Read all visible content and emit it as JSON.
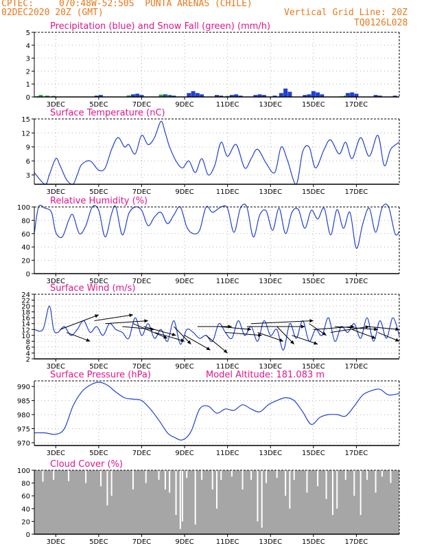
{
  "header": {
    "source": "CPTEC:",
    "location": "070:48W-52:50S  PUNTA ARENAS (CHILE)",
    "run": "02DEC2020 20Z (GMT)",
    "grid": "Vertical Grid Line: 20Z",
    "code": "TQ0126L028"
  },
  "colors": {
    "header": "#e8781a",
    "title": "#e0148c",
    "blue": "#2040d0",
    "green": "#2aaa2a",
    "cloud": "#a6a6a6",
    "grid": "#b0b0b0"
  },
  "chart_data": [
    {
      "type": "bar",
      "title": "Precipitation (blue) and Snow Fall (green) (mm/h)",
      "ylim": [
        0,
        5
      ],
      "yticks": [
        0,
        1,
        2,
        3,
        4,
        5
      ],
      "xticks": [
        "3DEC",
        "5DEC",
        "7DEC",
        "9DEC",
        "11DEC",
        "13DEC",
        "15DEC",
        "17DEC"
      ],
      "series": [
        {
          "name": "Precipitation",
          "points": [
            [
              0.2,
              0.05
            ],
            [
              2.9,
              0.1
            ],
            [
              3.1,
              0.15
            ],
            [
              4.6,
              0.2
            ],
            [
              4.8,
              0.25
            ],
            [
              5.0,
              0.15
            ],
            [
              6.1,
              0.2
            ],
            [
              6.3,
              0.15
            ],
            [
              6.5,
              0.1
            ],
            [
              7.2,
              0.3
            ],
            [
              7.4,
              0.45
            ],
            [
              7.6,
              0.3
            ],
            [
              7.8,
              0.2
            ],
            [
              8.5,
              0.15
            ],
            [
              8.7,
              0.1
            ],
            [
              9.2,
              0.15
            ],
            [
              9.4,
              0.2
            ],
            [
              9.6,
              0.1
            ],
            [
              10.3,
              0.15
            ],
            [
              10.5,
              0.2
            ],
            [
              10.7,
              0.15
            ],
            [
              11.2,
              0.1
            ],
            [
              11.5,
              0.3
            ],
            [
              11.7,
              0.65
            ],
            [
              11.9,
              0.4
            ],
            [
              12.6,
              0.15
            ],
            [
              12.8,
              0.2
            ],
            [
              13.0,
              0.45
            ],
            [
              13.2,
              0.35
            ],
            [
              13.4,
              0.2
            ],
            [
              14.6,
              0.3
            ],
            [
              14.8,
              0.35
            ],
            [
              15.0,
              0.25
            ],
            [
              15.9,
              0.15
            ],
            [
              16.1,
              0.1
            ],
            [
              16.8,
              0.1
            ]
          ]
        },
        {
          "name": "Snow Fall",
          "points": [
            [
              0.3,
              0.15
            ],
            [
              0.6,
              0.1
            ],
            [
              0.9,
              0.08
            ],
            [
              4.4,
              0.12
            ],
            [
              5.9,
              0.18
            ],
            [
              6.2,
              0.12
            ],
            [
              9.0,
              0.08
            ],
            [
              14.3,
              0.05
            ],
            [
              14.5,
              0.1
            ]
          ]
        }
      ]
    },
    {
      "type": "line",
      "title": "Surface Temperature (nC)",
      "ylim": [
        1,
        15
      ],
      "yticks": [
        3,
        6,
        9,
        12,
        15
      ],
      "xticks": [
        "3DEC",
        "5DEC",
        "7DEC",
        "9DEC",
        "11DEC",
        "13DEC",
        "15DEC",
        "17DEC"
      ],
      "x": [
        0.0,
        0.5,
        0.7,
        1.0,
        1.2,
        1.5,
        1.8,
        2.0,
        2.2,
        2.6,
        3.0,
        3.3,
        3.6,
        3.9,
        4.2,
        4.4,
        4.7,
        5.0,
        5.3,
        5.6,
        5.9,
        6.1,
        6.3,
        6.6,
        6.9,
        7.2,
        7.5,
        7.8,
        8.1,
        8.4,
        8.7,
        9.0,
        9.4,
        9.8,
        10.1,
        10.4,
        10.8,
        11.2,
        11.5,
        11.8,
        12.2,
        12.5,
        12.8,
        13.1,
        13.5,
        13.8,
        14.2,
        14.5,
        14.8,
        15.2,
        15.6,
        16.0,
        16.3,
        16.6,
        17.0
      ],
      "y": [
        3.5,
        1.0,
        3.0,
        6.5,
        5.0,
        2.0,
        1.0,
        3.0,
        5.2,
        6.0,
        4.0,
        4.5,
        8.5,
        11.0,
        9.0,
        9.5,
        7.5,
        11.5,
        9.5,
        11.0,
        14.5,
        12.0,
        9.0,
        6.0,
        4.5,
        6.0,
        3.5,
        6.5,
        3.0,
        5.0,
        10.0,
        7.0,
        9.5,
        4.5,
        6.5,
        8.5,
        5.5,
        3.5,
        9.0,
        6.0,
        1.0,
        8.0,
        9.0,
        4.5,
        8.5,
        10.5,
        7.5,
        10.0,
        6.5,
        11.0,
        7.0,
        11.5,
        5.0,
        8.5,
        10.0
      ]
    },
    {
      "type": "line",
      "title": "Relative Humidity (%)",
      "ylim": [
        0,
        100
      ],
      "yticks": [
        0,
        20,
        40,
        60,
        80,
        100
      ],
      "xticks": [
        "3DEC",
        "5DEC",
        "7DEC",
        "9DEC",
        "11DEC",
        "13DEC",
        "15DEC",
        "17DEC"
      ],
      "x": [
        0.0,
        0.2,
        0.5,
        0.8,
        1.0,
        1.3,
        1.6,
        1.8,
        2.1,
        2.4,
        2.7,
        3.0,
        3.3,
        3.6,
        3.8,
        4.1,
        4.4,
        4.7,
        5.0,
        5.3,
        5.6,
        5.9,
        6.2,
        6.5,
        6.8,
        7.1,
        7.4,
        7.7,
        8.0,
        8.3,
        8.7,
        9.0,
        9.3,
        9.6,
        9.9,
        10.2,
        10.5,
        10.8,
        11.1,
        11.4,
        11.7,
        12.0,
        12.3,
        12.6,
        12.9,
        13.2,
        13.5,
        13.8,
        14.1,
        14.4,
        14.7,
        15.0,
        15.3,
        15.6,
        15.9,
        16.2,
        16.5,
        16.8,
        17.0
      ],
      "y": [
        60,
        100,
        98,
        92,
        62,
        55,
        80,
        88,
        60,
        72,
        100,
        95,
        55,
        90,
        100,
        58,
        90,
        100,
        95,
        72,
        85,
        92,
        75,
        88,
        100,
        70,
        60,
        65,
        100,
        92,
        100,
        98,
        62,
        98,
        100,
        55,
        88,
        94,
        65,
        98,
        60,
        92,
        96,
        68,
        95,
        82,
        98,
        58,
        96,
        68,
        92,
        38,
        75,
        98,
        62,
        99,
        100,
        60,
        63
      ]
    },
    {
      "type": "line",
      "title": "Surface Wind (m/s)",
      "ylim": [
        2,
        24
      ],
      "yticks": [
        2,
        4,
        6,
        8,
        10,
        12,
        14,
        16,
        18,
        20,
        22,
        24
      ],
      "xticks": [
        "3DEC",
        "5DEC",
        "7DEC",
        "9DEC",
        "11DEC",
        "13DEC",
        "15DEC",
        "17DEC"
      ],
      "x": [
        0.0,
        0.4,
        0.7,
        0.9,
        1.1,
        1.4,
        1.7,
        2.0,
        2.3,
        2.6,
        2.9,
        3.2,
        3.5,
        3.8,
        4.1,
        4.4,
        4.7,
        5.0,
        5.3,
        5.6,
        5.9,
        6.2,
        6.5,
        6.8,
        7.1,
        7.4,
        7.7,
        8.0,
        8.3,
        8.6,
        8.9,
        9.2,
        9.5,
        9.8,
        10.1,
        10.4,
        10.7,
        11.0,
        11.3,
        11.6,
        11.9,
        12.2,
        12.5,
        12.8,
        13.1,
        13.4,
        13.7,
        14.0,
        14.3,
        14.6,
        14.9,
        15.2,
        15.5,
        15.8,
        16.1,
        16.4,
        16.7,
        17.0
      ],
      "y": [
        12,
        12,
        20,
        12,
        11,
        13,
        10,
        12,
        15,
        11,
        13,
        10,
        14,
        12,
        11,
        9,
        16,
        10,
        14,
        9,
        12,
        8,
        15,
        7,
        12,
        11,
        9,
        10,
        8,
        14,
        11,
        9,
        15,
        10,
        13,
        8,
        15,
        10,
        12,
        5,
        14,
        9,
        15,
        8,
        12,
        10,
        16,
        8,
        13,
        11,
        14,
        9,
        16,
        8,
        15,
        9,
        16,
        10
      ]
    },
    {
      "type": "line",
      "title": "Surface Pressure (hPa)",
      "annotation": "Model Altitude: 181.083 m",
      "ylim": [
        969,
        992
      ],
      "yticks": [
        970,
        975,
        980,
        985,
        990
      ],
      "xticks": [
        "3DEC",
        "5DEC",
        "7DEC",
        "9DEC",
        "11DEC",
        "13DEC",
        "15DEC",
        "17DEC"
      ],
      "x": [
        0.0,
        0.5,
        1.0,
        1.4,
        1.8,
        2.2,
        2.6,
        3.0,
        3.4,
        3.8,
        4.2,
        4.6,
        5.0,
        5.4,
        5.8,
        6.2,
        6.5,
        6.9,
        7.3,
        7.7,
        8.1,
        8.5,
        8.9,
        9.3,
        9.7,
        10.1,
        10.5,
        10.9,
        11.3,
        11.7,
        12.1,
        12.5,
        12.9,
        13.3,
        13.7,
        14.1,
        14.5,
        14.9,
        15.3,
        15.7,
        16.1,
        16.5,
        17.0
      ],
      "y": [
        973.5,
        973.5,
        973,
        975,
        983,
        988,
        990.5,
        991.5,
        990.5,
        988,
        986,
        985.5,
        985,
        982,
        978,
        973.5,
        972,
        971,
        974,
        982,
        983,
        980.5,
        982,
        981.5,
        983.5,
        982,
        981,
        983.5,
        985,
        986,
        985,
        981,
        976.5,
        979,
        980,
        980,
        979.5,
        983,
        987,
        988.5,
        989,
        987,
        987.5
      ]
    },
    {
      "type": "bar",
      "title": "Cloud Cover (%)",
      "ylim": [
        0,
        100
      ],
      "yticks": [
        0,
        20,
        40,
        60,
        80,
        100
      ],
      "xticks": [
        "3DEC",
        "5DEC",
        "7DEC",
        "9DEC",
        "11DEC",
        "13DEC",
        "15DEC",
        "17DEC"
      ],
      "dips": [
        [
          0.4,
          82
        ],
        [
          0.9,
          85
        ],
        [
          1.6,
          83
        ],
        [
          2.4,
          80
        ],
        [
          3.1,
          75
        ],
        [
          3.4,
          45
        ],
        [
          3.6,
          60
        ],
        [
          4.6,
          70
        ],
        [
          5.2,
          80
        ],
        [
          5.8,
          85
        ],
        [
          6.1,
          70
        ],
        [
          6.3,
          65
        ],
        [
          6.6,
          30
        ],
        [
          6.8,
          8
        ],
        [
          6.9,
          20
        ],
        [
          7.1,
          88
        ],
        [
          7.5,
          15
        ],
        [
          7.8,
          85
        ],
        [
          8.3,
          70
        ],
        [
          8.5,
          40
        ],
        [
          8.7,
          85
        ],
        [
          9.2,
          90
        ],
        [
          9.7,
          70
        ],
        [
          10.1,
          85
        ],
        [
          10.4,
          20
        ],
        [
          10.6,
          10
        ],
        [
          10.8,
          80
        ],
        [
          11.3,
          88
        ],
        [
          11.7,
          60
        ],
        [
          11.9,
          40
        ],
        [
          12.1,
          85
        ],
        [
          12.7,
          65
        ],
        [
          13.2,
          75
        ],
        [
          13.6,
          55
        ],
        [
          13.9,
          30
        ],
        [
          14.1,
          40
        ],
        [
          14.5,
          85
        ],
        [
          14.9,
          60
        ],
        [
          15.2,
          30
        ],
        [
          15.5,
          85
        ],
        [
          15.9,
          65
        ],
        [
          16.2,
          90
        ],
        [
          16.6,
          80
        ]
      ]
    }
  ]
}
